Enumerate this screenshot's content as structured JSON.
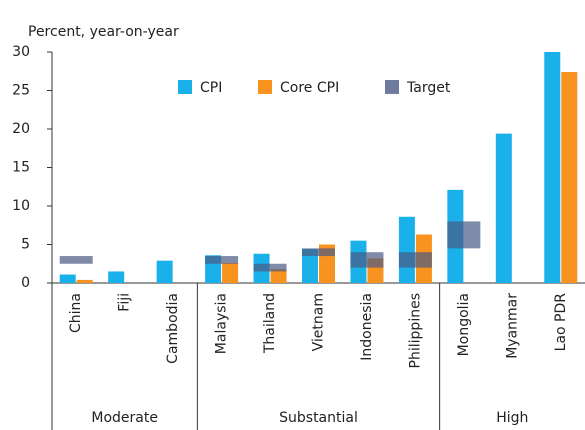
{
  "chart_data": {
    "type": "bar",
    "y_label": "Percent, year-on-year",
    "groups": [
      {
        "label": "Moderate",
        "categories": [
          "China",
          "Fiji",
          "Cambodia"
        ]
      },
      {
        "label": "Substantial",
        "categories": [
          "Malaysia",
          "Thailand",
          "Vietnam",
          "Indonesia",
          "Philippines"
        ]
      },
      {
        "label": "High",
        "categories": [
          "Mongolia",
          "Myanmar",
          "Lao PDR"
        ]
      }
    ],
    "series": [
      {
        "name": "CPI",
        "color": "#1ab0ea",
        "values": [
          1.1,
          1.5,
          2.9,
          3.6,
          3.8,
          4.4,
          5.5,
          8.6,
          12.1,
          19.4,
          30
        ]
      },
      {
        "name": "Core CPI",
        "color": "#f7931e",
        "values": [
          0.4,
          null,
          null,
          2.6,
          1.8,
          5.0,
          3.2,
          6.3,
          null,
          null,
          27.4
        ]
      },
      {
        "name": "Target",
        "color": "#4a5a85",
        "low": [
          2.5,
          null,
          null,
          2.5,
          1.5,
          3.5,
          2,
          2,
          4.5,
          null,
          null
        ],
        "high": [
          3.5,
          null,
          null,
          3.5,
          2.5,
          4.5,
          4,
          4,
          8,
          null,
          null
        ]
      }
    ],
    "ylim": [
      0,
      30
    ],
    "yticks": [
      0,
      5,
      10,
      15,
      20,
      25,
      30
    ]
  }
}
